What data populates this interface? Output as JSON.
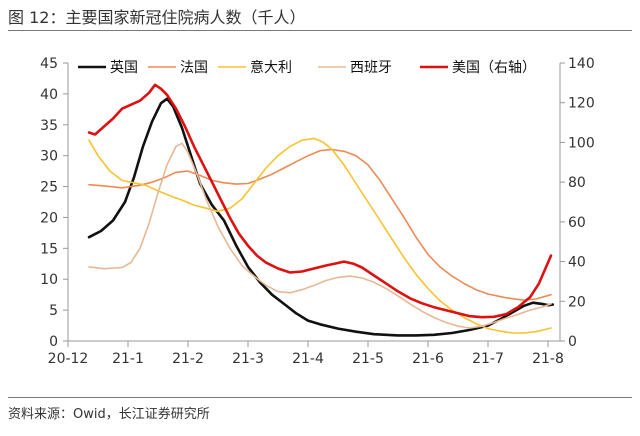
{
  "title": "图 12：主要国家新冠住院病人数（千人）",
  "source": "资料来源：Owid，长江证券研究所",
  "colors": {
    "uk": "#111111",
    "france": "#ee8a55",
    "italy": "#f9c22e",
    "spain": "#e8b896",
    "us": "#dd1111",
    "axis": "#999999"
  },
  "chart_data": {
    "type": "line",
    "title": "主要国家新冠住院病人数（千人）",
    "x_ticks": [
      "20-12",
      "21-1",
      "21-2",
      "21-3",
      "21-4",
      "21-5",
      "21-6",
      "21-7",
      "21-8"
    ],
    "x_range": [
      0,
      8.2
    ],
    "ylim": [
      0,
      45
    ],
    "y_ticks": [
      0,
      5,
      10,
      15,
      20,
      25,
      30,
      35,
      40,
      45
    ],
    "y2lim": [
      0,
      140
    ],
    "y2_ticks": [
      0,
      20,
      40,
      60,
      80,
      100,
      120,
      140
    ],
    "grid": false,
    "legend_position": "top",
    "series": [
      {
        "name": "英国",
        "key": "uk",
        "axis": "left",
        "width": 2.6,
        "points": [
          [
            0.35,
            16.8
          ],
          [
            0.55,
            17.8
          ],
          [
            0.75,
            19.5
          ],
          [
            0.95,
            22.5
          ],
          [
            1.1,
            26.5
          ],
          [
            1.25,
            31.5
          ],
          [
            1.4,
            35.5
          ],
          [
            1.55,
            38.5
          ],
          [
            1.65,
            39.2
          ],
          [
            1.75,
            38
          ],
          [
            1.9,
            34.5
          ],
          [
            2.05,
            30
          ],
          [
            2.2,
            25.5
          ],
          [
            2.4,
            22
          ],
          [
            2.6,
            19.5
          ],
          [
            2.8,
            15.5
          ],
          [
            3.0,
            12
          ],
          [
            3.2,
            9.5
          ],
          [
            3.4,
            7.5
          ],
          [
            3.6,
            6
          ],
          [
            3.8,
            4.5
          ],
          [
            4.0,
            3.3
          ],
          [
            4.2,
            2.7
          ],
          [
            4.5,
            2.0
          ],
          [
            4.8,
            1.5
          ],
          [
            5.1,
            1.1
          ],
          [
            5.5,
            0.9
          ],
          [
            5.8,
            0.9
          ],
          [
            6.1,
            1.0
          ],
          [
            6.4,
            1.3
          ],
          [
            6.7,
            1.8
          ],
          [
            7.0,
            2.5
          ],
          [
            7.2,
            3.5
          ],
          [
            7.4,
            4.6
          ],
          [
            7.6,
            5.7
          ],
          [
            7.75,
            6.2
          ],
          [
            7.9,
            6.0
          ],
          [
            8.0,
            5.8
          ],
          [
            8.08,
            5.9
          ]
        ]
      },
      {
        "name": "法国",
        "key": "france",
        "axis": "left",
        "width": 1.6,
        "points": [
          [
            0.35,
            25.3
          ],
          [
            0.6,
            25.1
          ],
          [
            0.9,
            24.8
          ],
          [
            1.2,
            25.2
          ],
          [
            1.4,
            25.7
          ],
          [
            1.6,
            26.4
          ],
          [
            1.8,
            27.3
          ],
          [
            2.0,
            27.5
          ],
          [
            2.2,
            26.8
          ],
          [
            2.4,
            26
          ],
          [
            2.6,
            25.6
          ],
          [
            2.8,
            25.4
          ],
          [
            3.0,
            25.5
          ],
          [
            3.2,
            26.2
          ],
          [
            3.4,
            27
          ],
          [
            3.6,
            28
          ],
          [
            3.8,
            29
          ],
          [
            4.0,
            30
          ],
          [
            4.2,
            30.8
          ],
          [
            4.4,
            31
          ],
          [
            4.6,
            30.7
          ],
          [
            4.8,
            30
          ],
          [
            5.0,
            28.5
          ],
          [
            5.2,
            26
          ],
          [
            5.4,
            23
          ],
          [
            5.6,
            20
          ],
          [
            5.8,
            16.8
          ],
          [
            6.0,
            14
          ],
          [
            6.2,
            12
          ],
          [
            6.4,
            10.5
          ],
          [
            6.6,
            9.3
          ],
          [
            6.8,
            8.3
          ],
          [
            7.0,
            7.6
          ],
          [
            7.3,
            7.0
          ],
          [
            7.6,
            6.6
          ],
          [
            7.8,
            6.8
          ],
          [
            8.05,
            7.5
          ]
        ]
      },
      {
        "name": "意大利",
        "key": "italy",
        "axis": "left",
        "width": 1.6,
        "points": [
          [
            0.35,
            32.5
          ],
          [
            0.5,
            30
          ],
          [
            0.7,
            27.5
          ],
          [
            0.9,
            26
          ],
          [
            1.1,
            25.6
          ],
          [
            1.3,
            25.2
          ],
          [
            1.5,
            24.3
          ],
          [
            1.7,
            23.5
          ],
          [
            1.9,
            22.8
          ],
          [
            2.1,
            22
          ],
          [
            2.3,
            21.5
          ],
          [
            2.5,
            21
          ],
          [
            2.7,
            21.5
          ],
          [
            2.9,
            23
          ],
          [
            3.1,
            25.5
          ],
          [
            3.3,
            28
          ],
          [
            3.5,
            30
          ],
          [
            3.7,
            31.5
          ],
          [
            3.9,
            32.5
          ],
          [
            4.1,
            32.8
          ],
          [
            4.25,
            32.2
          ],
          [
            4.4,
            31
          ],
          [
            4.6,
            28.5
          ],
          [
            4.8,
            25.5
          ],
          [
            5.0,
            22.5
          ],
          [
            5.2,
            19.5
          ],
          [
            5.4,
            16.5
          ],
          [
            5.6,
            13.5
          ],
          [
            5.8,
            10.8
          ],
          [
            6.0,
            8.5
          ],
          [
            6.2,
            6.5
          ],
          [
            6.4,
            5.0
          ],
          [
            6.6,
            3.8
          ],
          [
            6.8,
            2.8
          ],
          [
            7.0,
            2.0
          ],
          [
            7.2,
            1.6
          ],
          [
            7.4,
            1.3
          ],
          [
            7.6,
            1.3
          ],
          [
            7.8,
            1.5
          ],
          [
            8.05,
            2.1
          ]
        ]
      },
      {
        "name": "西班牙",
        "key": "spain",
        "axis": "left",
        "width": 1.6,
        "points": [
          [
            0.35,
            12
          ],
          [
            0.6,
            11.7
          ],
          [
            0.9,
            11.9
          ],
          [
            1.05,
            12.7
          ],
          [
            1.2,
            15
          ],
          [
            1.35,
            19
          ],
          [
            1.5,
            24
          ],
          [
            1.65,
            28.5
          ],
          [
            1.8,
            31.5
          ],
          [
            1.9,
            32
          ],
          [
            2.0,
            30.5
          ],
          [
            2.15,
            27
          ],
          [
            2.3,
            23
          ],
          [
            2.5,
            18.5
          ],
          [
            2.7,
            15
          ],
          [
            2.9,
            12.2
          ],
          [
            3.1,
            10.5
          ],
          [
            3.3,
            9
          ],
          [
            3.5,
            8
          ],
          [
            3.7,
            7.8
          ],
          [
            3.9,
            8.3
          ],
          [
            4.1,
            9.0
          ],
          [
            4.3,
            9.8
          ],
          [
            4.5,
            10.3
          ],
          [
            4.7,
            10.5
          ],
          [
            4.9,
            10.2
          ],
          [
            5.1,
            9.5
          ],
          [
            5.3,
            8.5
          ],
          [
            5.5,
            7.3
          ],
          [
            5.7,
            6.0
          ],
          [
            5.9,
            4.8
          ],
          [
            6.1,
            3.8
          ],
          [
            6.3,
            3.0
          ],
          [
            6.5,
            2.4
          ],
          [
            6.7,
            2.1
          ],
          [
            6.9,
            2.4
          ],
          [
            7.1,
            3.0
          ],
          [
            7.3,
            3.7
          ],
          [
            7.5,
            4.3
          ],
          [
            7.7,
            5.0
          ],
          [
            7.9,
            5.5
          ],
          [
            8.05,
            6.0
          ]
        ]
      },
      {
        "name": "美国（右轴）",
        "key": "us",
        "axis": "right",
        "width": 2.6,
        "points": [
          [
            0.35,
            105
          ],
          [
            0.45,
            104
          ],
          [
            0.6,
            108
          ],
          [
            0.75,
            112
          ],
          [
            0.9,
            117
          ],
          [
            1.05,
            119
          ],
          [
            1.2,
            121
          ],
          [
            1.35,
            125
          ],
          [
            1.45,
            129
          ],
          [
            1.55,
            127
          ],
          [
            1.65,
            124
          ],
          [
            1.8,
            117
          ],
          [
            1.95,
            108
          ],
          [
            2.1,
            98
          ],
          [
            2.25,
            89
          ],
          [
            2.4,
            80
          ],
          [
            2.55,
            71
          ],
          [
            2.7,
            62
          ],
          [
            2.85,
            54
          ],
          [
            3.0,
            48
          ],
          [
            3.15,
            43
          ],
          [
            3.3,
            39.5
          ],
          [
            3.5,
            36.5
          ],
          [
            3.7,
            34.5
          ],
          [
            3.9,
            35
          ],
          [
            4.1,
            36.5
          ],
          [
            4.3,
            38
          ],
          [
            4.45,
            39
          ],
          [
            4.6,
            40
          ],
          [
            4.75,
            39
          ],
          [
            4.9,
            37
          ],
          [
            5.1,
            33
          ],
          [
            5.3,
            29
          ],
          [
            5.5,
            25
          ],
          [
            5.7,
            21.5
          ],
          [
            5.9,
            19
          ],
          [
            6.1,
            17
          ],
          [
            6.3,
            15.5
          ],
          [
            6.5,
            14
          ],
          [
            6.7,
            12.5
          ],
          [
            6.9,
            12
          ],
          [
            7.1,
            12.2
          ],
          [
            7.3,
            13.5
          ],
          [
            7.5,
            17
          ],
          [
            7.7,
            22
          ],
          [
            7.85,
            29
          ],
          [
            7.95,
            36
          ],
          [
            8.05,
            43
          ]
        ]
      }
    ]
  }
}
